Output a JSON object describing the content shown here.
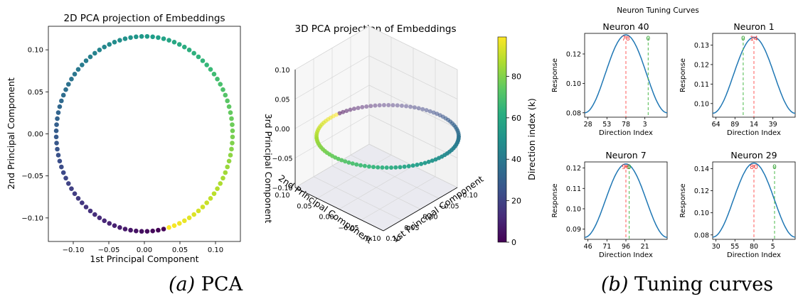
{
  "captions": [
    {
      "label": "(a)",
      "text": "PCA"
    },
    {
      "label": "(b)",
      "text": "Tuning curves"
    }
  ],
  "colors": {
    "ring": "viridis",
    "curve": "#1f77b4",
    "preferred": "#ff5a5a",
    "stimulus": "#49b849"
  },
  "chart_data": [
    {
      "type": "scatter",
      "title": "2D PCA projection of Embeddings",
      "xlabel": "1st Principal Component",
      "ylabel": "2nd Principal Component",
      "xlim": [
        -0.135,
        0.135
      ],
      "ylim": [
        -0.128,
        0.128
      ],
      "xticks": [
        -0.1,
        -0.05,
        0.0,
        0.05,
        0.1
      ],
      "yticks": [
        -0.1,
        -0.05,
        0.0,
        0.05,
        0.1
      ],
      "tick_labels_x": [
        "−0.10",
        "−0.05",
        "0.00",
        "0.05",
        "0.10"
      ],
      "tick_labels_y": [
        "−0.10",
        "−0.05",
        "0.00",
        "0.05",
        "0.10"
      ],
      "points": 100,
      "shape": "circle",
      "radius_x": 0.124,
      "radius_y": 0.116,
      "color_by": "Direction index (k)",
      "grid": false
    },
    {
      "type": "scatter",
      "title": "3D PCA projection of Embeddings",
      "xlabel": "1st Principal Component",
      "ylabel": "2nd Principal Component",
      "zlabel": "3rd Principal Component",
      "x_tick_labels": [
        "−0.10",
        "−0.05",
        "0.00",
        "0.05",
        "0.10"
      ],
      "y_tick_labels": [
        "−0.10",
        "−0.05",
        "0.00",
        "0.05",
        "0.10"
      ],
      "z_tick_labels": [
        "0.10",
        "0.05",
        "0.00",
        "−0.05",
        "−0.10"
      ],
      "points": 100,
      "grid": true,
      "colorbar": {
        "label": "Direction index (k)",
        "range": [
          0,
          99
        ],
        "ticks": [
          0,
          20,
          40,
          60,
          80
        ],
        "tick_labels": [
          "0",
          "20",
          "40",
          "60",
          "80"
        ]
      }
    },
    {
      "type": "line",
      "suptitle": "Neuron Tuning Curves",
      "xlabel": "Direction Index",
      "ylabel": "Response",
      "panels": [
        {
          "title": "Neuron 40",
          "x_tick_labels": [
            "28",
            "53",
            "78",
            "3"
          ],
          "y_ticks": [
            0.08,
            0.1,
            0.12
          ],
          "y_tick_labels": [
            "0.08",
            "0.10",
            "0.12"
          ],
          "ylim": [
            0.077,
            0.134
          ],
          "peak": 0.133,
          "base": 0.08,
          "preferred": {
            "text": "78",
            "position": 0.5
          },
          "stimulus": {
            "text": "0",
            "position": 0.77
          }
        },
        {
          "title": "Neuron 1",
          "x_tick_labels": [
            "64",
            "89",
            "14",
            "39"
          ],
          "y_ticks": [
            0.1,
            0.11,
            0.12,
            0.13
          ],
          "y_tick_labels": [
            "0.10",
            "0.11",
            "0.12",
            "0.13"
          ],
          "ylim": [
            0.093,
            0.136
          ],
          "peak": 0.134,
          "base": 0.095,
          "preferred": {
            "text": "14",
            "position": 0.5
          },
          "stimulus": {
            "text": "0",
            "position": 0.37
          }
        },
        {
          "title": "Neuron 7",
          "x_tick_labels": [
            "46",
            "71",
            "96",
            "21"
          ],
          "y_ticks": [
            0.09,
            0.1,
            0.11,
            0.12
          ],
          "y_tick_labels": [
            "0.09",
            "0.10",
            "0.11",
            "0.12"
          ],
          "ylim": [
            0.085,
            0.123
          ],
          "peak": 0.122,
          "base": 0.086,
          "preferred": {
            "text": "96",
            "position": 0.5
          },
          "stimulus": {
            "text": "0",
            "position": 0.54
          }
        },
        {
          "title": "Neuron 29",
          "x_tick_labels": [
            "30",
            "55",
            "80",
            "5"
          ],
          "y_ticks": [
            0.08,
            0.1,
            0.12,
            0.14
          ],
          "y_tick_labels": [
            "0.08",
            "0.10",
            "0.12",
            "0.14"
          ],
          "ylim": [
            0.076,
            0.146
          ],
          "peak": 0.145,
          "base": 0.078,
          "preferred": {
            "text": "80",
            "position": 0.5
          },
          "stimulus": {
            "text": "0",
            "position": 0.75
          }
        }
      ]
    }
  ]
}
